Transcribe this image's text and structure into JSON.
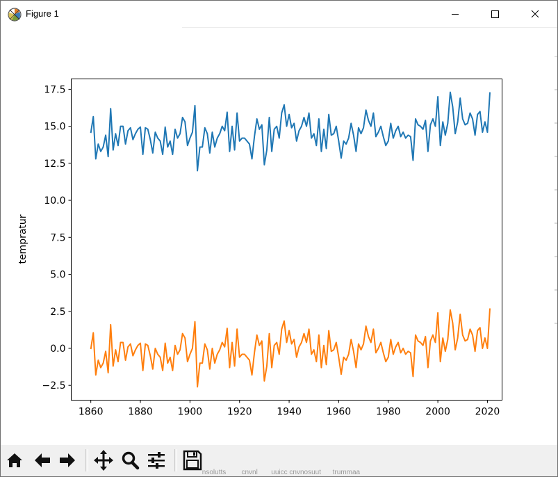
{
  "window": {
    "title": "Figure 1",
    "controls": [
      "minimize",
      "maximize",
      "close"
    ]
  },
  "toolbar": {
    "buttons": [
      {
        "name": "home-button",
        "icon": "home-icon",
        "tooltip": "Reset original view"
      },
      {
        "name": "back-button",
        "icon": "arrow-left-icon",
        "tooltip": "Back to previous view"
      },
      {
        "name": "forward-button",
        "icon": "arrow-right-icon",
        "tooltip": "Forward to next view"
      },
      {
        "name": "pan-button",
        "icon": "move-icon",
        "tooltip": "Pan axes"
      },
      {
        "name": "zoom-button",
        "icon": "magnifier-icon",
        "tooltip": "Zoom to rectangle"
      },
      {
        "name": "configure-subplots-button",
        "icon": "sliders-icon",
        "tooltip": "Configure subplots"
      },
      {
        "name": "save-button",
        "icon": "floppy-disk-icon",
        "tooltip": "Save the figure"
      }
    ],
    "status": "          nsolutts        cnvnl       uuicc cnvnosuut      trummaa"
  },
  "colors": {
    "series_1": "#1f77b4",
    "series_2": "#ff7f0e"
  },
  "chart_data": {
    "type": "line",
    "title": "",
    "xlabel": "",
    "ylabel": "tempratur",
    "xlim": [
      1852.1,
      2025.9
    ],
    "ylim": [
      -3.5,
      18.2
    ],
    "xticks": [
      1860,
      1880,
      1900,
      1920,
      1940,
      1960,
      1980,
      2000,
      2020
    ],
    "yticks": [
      -2.5,
      0.0,
      2.5,
      5.0,
      7.5,
      10.0,
      12.5,
      15.0,
      17.5
    ],
    "ytick_labels": [
      "−2.5",
      "0.0",
      "2.5",
      "5.0",
      "7.5",
      "10.0",
      "12.5",
      "15.0",
      "17.5"
    ],
    "x_start": 1860,
    "x_step": 1,
    "series": [
      {
        "name": "series_1",
        "color": "#1f77b4",
        "values": [
          14.55,
          15.65,
          12.8,
          13.8,
          13.3,
          13.6,
          14.4,
          12.95,
          16.2,
          13.4,
          14.5,
          13.7,
          15.0,
          15.0,
          13.8,
          14.7,
          14.9,
          14.1,
          14.5,
          14.8,
          14.95,
          13.1,
          14.9,
          14.8,
          14.1,
          13.2,
          14.6,
          14.2,
          14.0,
          13.1,
          14.95,
          13.6,
          14.0,
          13.1,
          14.8,
          14.2,
          14.5,
          15.6,
          15.3,
          13.7,
          14.2,
          14.6,
          16.4,
          12.0,
          13.6,
          13.6,
          14.9,
          14.5,
          13.2,
          14.6,
          13.6,
          14.2,
          14.5,
          15.0,
          14.7,
          15.95,
          13.3,
          15.0,
          13.4,
          15.9,
          14.0,
          14.2,
          14.2,
          14.0,
          13.8,
          12.8,
          14.3,
          15.5,
          14.8,
          15.1,
          12.4,
          13.4,
          15.6,
          13.3,
          14.8,
          15.0,
          14.2,
          15.9,
          16.45,
          15.0,
          15.8,
          14.9,
          15.2,
          14.0,
          14.7,
          15.0,
          15.6,
          15.0,
          15.9,
          14.2,
          14.5,
          13.7,
          15.5,
          13.3,
          14.8,
          13.5,
          15.8,
          14.4,
          14.5,
          15.0,
          14.0,
          12.85,
          14.0,
          13.8,
          14.2,
          15.2,
          14.4,
          13.3,
          14.9,
          14.5,
          14.9,
          16.1,
          15.4,
          15.0,
          15.9,
          14.3,
          14.6,
          15.0,
          14.3,
          13.7,
          14.0,
          15.2,
          14.2,
          14.7,
          15.0,
          14.3,
          14.6,
          14.2,
          14.4,
          14.3,
          12.7,
          15.5,
          15.1,
          15.0,
          14.8,
          15.4,
          13.3,
          15.1,
          15.5,
          15.0,
          17.0,
          13.7,
          15.3,
          14.4,
          15.2,
          17.3,
          16.3,
          14.5,
          15.3,
          16.9,
          15.5,
          15.1,
          15.2,
          15.9,
          15.5,
          14.4,
          15.8,
          16.0,
          14.6,
          15.3,
          14.6,
          17.3
        ]
      },
      {
        "name": "series_2",
        "color": "#ff7f0e",
        "values": [
          -0.05,
          1.05,
          -1.8,
          -0.8,
          -1.3,
          -1.0,
          -0.2,
          -1.65,
          1.6,
          -1.2,
          -0.1,
          -0.9,
          0.4,
          0.4,
          -0.8,
          0.1,
          0.3,
          -0.5,
          -0.1,
          0.2,
          0.35,
          -1.5,
          0.3,
          0.2,
          -0.5,
          -1.4,
          0.0,
          -0.4,
          -0.6,
          -1.5,
          0.35,
          -1.0,
          -0.6,
          -1.5,
          0.2,
          -0.4,
          -0.1,
          1.0,
          0.7,
          -0.9,
          -0.4,
          0.0,
          1.8,
          -2.6,
          -1.0,
          -1.0,
          0.3,
          -0.1,
          -1.4,
          0.0,
          -1.0,
          -0.4,
          -0.1,
          0.4,
          0.1,
          1.35,
          -1.3,
          0.4,
          -1.2,
          1.3,
          -0.6,
          -0.4,
          -0.4,
          -0.6,
          -0.8,
          -1.8,
          -0.3,
          0.9,
          0.2,
          0.5,
          -2.2,
          -1.2,
          1.0,
          -1.3,
          0.2,
          0.4,
          -0.4,
          1.3,
          1.85,
          0.4,
          1.2,
          0.3,
          0.6,
          -0.6,
          0.1,
          0.4,
          1.0,
          0.4,
          1.3,
          -0.4,
          -0.1,
          -0.9,
          0.9,
          -1.3,
          0.2,
          -1.1,
          1.2,
          -0.2,
          -0.1,
          0.4,
          -0.6,
          -1.75,
          -0.6,
          -0.8,
          -0.4,
          0.6,
          -0.2,
          -1.3,
          0.3,
          -0.1,
          0.3,
          1.5,
          0.8,
          0.4,
          1.3,
          -0.3,
          0.0,
          0.4,
          -0.3,
          -0.9,
          -0.6,
          0.6,
          -0.4,
          0.1,
          0.4,
          -0.3,
          0.0,
          -0.4,
          -0.2,
          -0.3,
          -1.9,
          0.9,
          0.5,
          0.4,
          0.2,
          0.8,
          -1.3,
          0.5,
          0.9,
          0.4,
          2.4,
          -0.9,
          0.7,
          -0.2,
          0.6,
          2.6,
          1.7,
          -0.1,
          0.7,
          2.3,
          0.9,
          0.5,
          0.6,
          1.3,
          0.9,
          -0.2,
          1.2,
          1.4,
          0.0,
          0.7,
          0.0,
          2.7
        ]
      }
    ]
  }
}
